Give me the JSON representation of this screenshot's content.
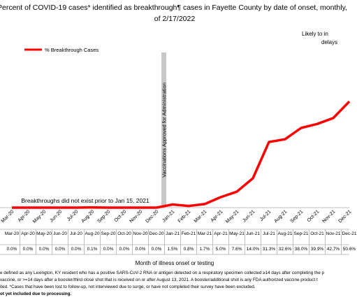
{
  "chart_data": {
    "type": "line",
    "title": "Percent of COVID-19 cases* identified as breakthrough¶ cases in Fayette County by date of onset, monthly,",
    "subtitle": "of 2/17/2022",
    "x_label": "Month of illness onset or testing",
    "categories": [
      "Mar-20",
      "Apr-20",
      "May-20",
      "Jun-20",
      "Jul-20",
      "Aug-20",
      "Sep-20",
      "Oct-20",
      "Nov-20",
      "Dec-20",
      "Jan-21",
      "Feb-21",
      "Mar-21",
      "Apr-21",
      "May-21",
      "Jun-21",
      "Jul-21",
      "Aug-21",
      "Sep-21",
      "Oct-21",
      "Nov-21",
      "Dec-21"
    ],
    "series": [
      {
        "name": "% Breakthrough Cases",
        "color": "#ff0000",
        "values": [
          0.0,
          0.0,
          0.0,
          0.0,
          0.0,
          0.1,
          0.0,
          0.0,
          0.0,
          0.0,
          1.5,
          0.8,
          1.7,
          5.0,
          7.6,
          14.0,
          31.3,
          32.6,
          38.0,
          39.9,
          42.7,
          50.6
        ],
        "value_labels": [
          "0.0%",
          "0.0%",
          "0.0%",
          "0.0%",
          "0.0%",
          "0.1%",
          "0.0%",
          "0.0%",
          "0.0%",
          "0.0%",
          "1.5%",
          "0.8%",
          "1.7%",
          "5.0%",
          "7.6%",
          "14.0%",
          "31.3%",
          "32.6%",
          "38.0%",
          "39.9%",
          "42.7%",
          "50.6%"
        ]
      }
    ],
    "ylim": [
      0,
      70
    ],
    "annotations": [
      "Vaccinations Approved for Administration",
      "Breakthroughs did not exist prior to Jan 15, 2021",
      "Likely to in",
      "delays"
    ],
    "footnotes": [
      "e defined as any Lexington, KY resident who has a positive SARS-CoV-2 RNA or antigen detected on a respiratory specimen collected ≥14 days after completing the p",
      "vaccine, or >=14 days after a booster/third close shot that is received on or after August 13, 2021.  A booster/additional shot is any FDA authorized vaccine product t",
      "ited. *Cases that have been lost to follow-up, not interviewed due to surge, or have not completed their survey have been excluded.",
      "ot yet included due to processing."
    ]
  }
}
